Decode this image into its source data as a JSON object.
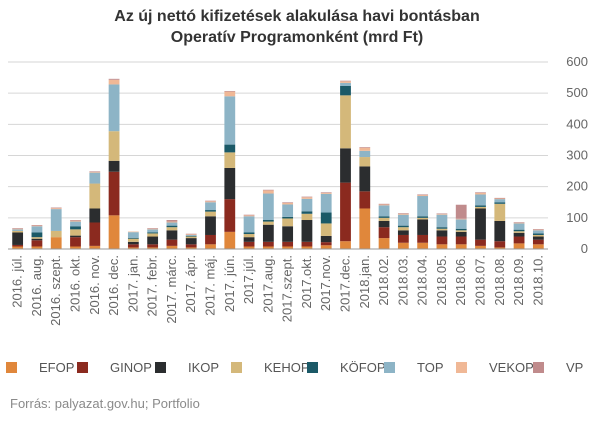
{
  "chart_data": {
    "type": "bar",
    "stacked": true,
    "title_lines": [
      "Az új nettó kifizetések alakulása havi bontásban",
      "Operatív Programonként (mrd Ft)"
    ],
    "categories": [
      "2016. júl.",
      "2016. aug.",
      "2016. szept.",
      "2016. okt.",
      "2016. nov.",
      "2016. dec.",
      "2017. jan.",
      "2017. febr.",
      "2017. márc.",
      "2017. ápr.",
      "2017. máj.",
      "2017. jún.",
      "2017.júl.",
      "2017.aug.",
      "2017.szept.",
      "2017.okt.",
      "2017.nov.",
      "2017.dec.",
      "2018.jan.",
      "2018.02.",
      "2018.03.",
      "2018.04.",
      "2018.05.",
      "2018.06.",
      "2018.07.",
      "2018.08.",
      "2018.09.",
      "2018.10."
    ],
    "series": [
      {
        "name": "EFOP",
        "color": "#E0873B",
        "values": [
          8,
          8,
          38,
          8,
          10,
          108,
          5,
          5,
          10,
          5,
          15,
          55,
          8,
          8,
          8,
          8,
          12,
          25,
          130,
          35,
          20,
          20,
          15,
          15,
          10,
          5,
          18,
          15
        ]
      },
      {
        "name": "GINOP",
        "color": "#8B2A1F",
        "values": [
          5,
          20,
          0,
          30,
          75,
          140,
          10,
          10,
          20,
          10,
          30,
          105,
          15,
          15,
          15,
          15,
          10,
          188,
          55,
          35,
          25,
          25,
          25,
          25,
          20,
          20,
          22,
          15
        ]
      },
      {
        "name": "IKOP",
        "color": "#2B2D2F",
        "values": [
          40,
          5,
          0,
          5,
          45,
          35,
          8,
          25,
          30,
          20,
          60,
          100,
          15,
          55,
          50,
          70,
          20,
          110,
          80,
          20,
          15,
          50,
          20,
          15,
          100,
          65,
          12,
          10
        ]
      },
      {
        "name": "KEHOP",
        "color": "#D4B87A",
        "values": [
          5,
          5,
          20,
          20,
          80,
          95,
          10,
          10,
          10,
          5,
          15,
          50,
          10,
          10,
          25,
          20,
          40,
          170,
          30,
          10,
          10,
          5,
          5,
          5,
          5,
          55,
          5,
          5
        ]
      },
      {
        "name": "KÖFOP",
        "color": "#1B5967",
        "values": [
          0,
          15,
          0,
          10,
          0,
          0,
          3,
          3,
          5,
          2,
          5,
          25,
          5,
          5,
          5,
          8,
          35,
          30,
          0,
          5,
          5,
          5,
          5,
          5,
          5,
          5,
          5,
          5
        ]
      },
      {
        "name": "TOP",
        "color": "#8DB4C6",
        "values": [
          5,
          20,
          70,
          15,
          35,
          150,
          18,
          10,
          10,
          3,
          25,
          155,
          52,
          85,
          40,
          40,
          60,
          10,
          20,
          35,
          35,
          65,
          40,
          30,
          35,
          10,
          20,
          10
        ]
      },
      {
        "name": "VEKOP",
        "color": "#F0B896",
        "values": [
          2,
          2,
          3,
          3,
          2,
          15,
          2,
          2,
          3,
          2,
          3,
          15,
          3,
          10,
          5,
          5,
          3,
          5,
          10,
          3,
          3,
          3,
          2,
          2,
          5,
          2,
          2,
          2
        ]
      },
      {
        "name": "VP",
        "color": "#C08B8C",
        "values": [
          2,
          2,
          2,
          2,
          2,
          3,
          0,
          2,
          5,
          2,
          2,
          2,
          2,
          2,
          2,
          2,
          2,
          2,
          2,
          2,
          2,
          2,
          2,
          45,
          2,
          2,
          2,
          2
        ]
      }
    ],
    "yticks": [
      0,
      100,
      200,
      300,
      400,
      500,
      600
    ],
    "ylim": [
      0,
      600
    ],
    "y_axis_side": "right",
    "grid": true,
    "legend_position": "bottom",
    "xlabel": "",
    "ylabel": "",
    "source": "Forrás: palyazat.gov.hu; Portfolio"
  }
}
